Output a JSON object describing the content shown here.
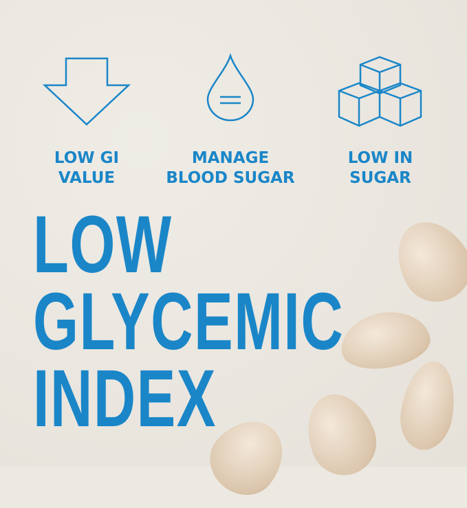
{
  "features": [
    {
      "label_lines": [
        "LOW GI",
        "VALUE"
      ],
      "icon": "down-arrow-icon"
    },
    {
      "label_lines": [
        "MANAGE",
        "BLOOD SUGAR"
      ],
      "icon": "water-drop-icon"
    },
    {
      "label_lines": [
        "LOW IN",
        "SUGAR"
      ],
      "icon": "sugar-cubes-icon"
    }
  ],
  "headline": [
    "LOW",
    "GLYCEMIC",
    "INDEX"
  ],
  "colors": {
    "accent": "#1a86c8",
    "background": "#ece9e2"
  }
}
